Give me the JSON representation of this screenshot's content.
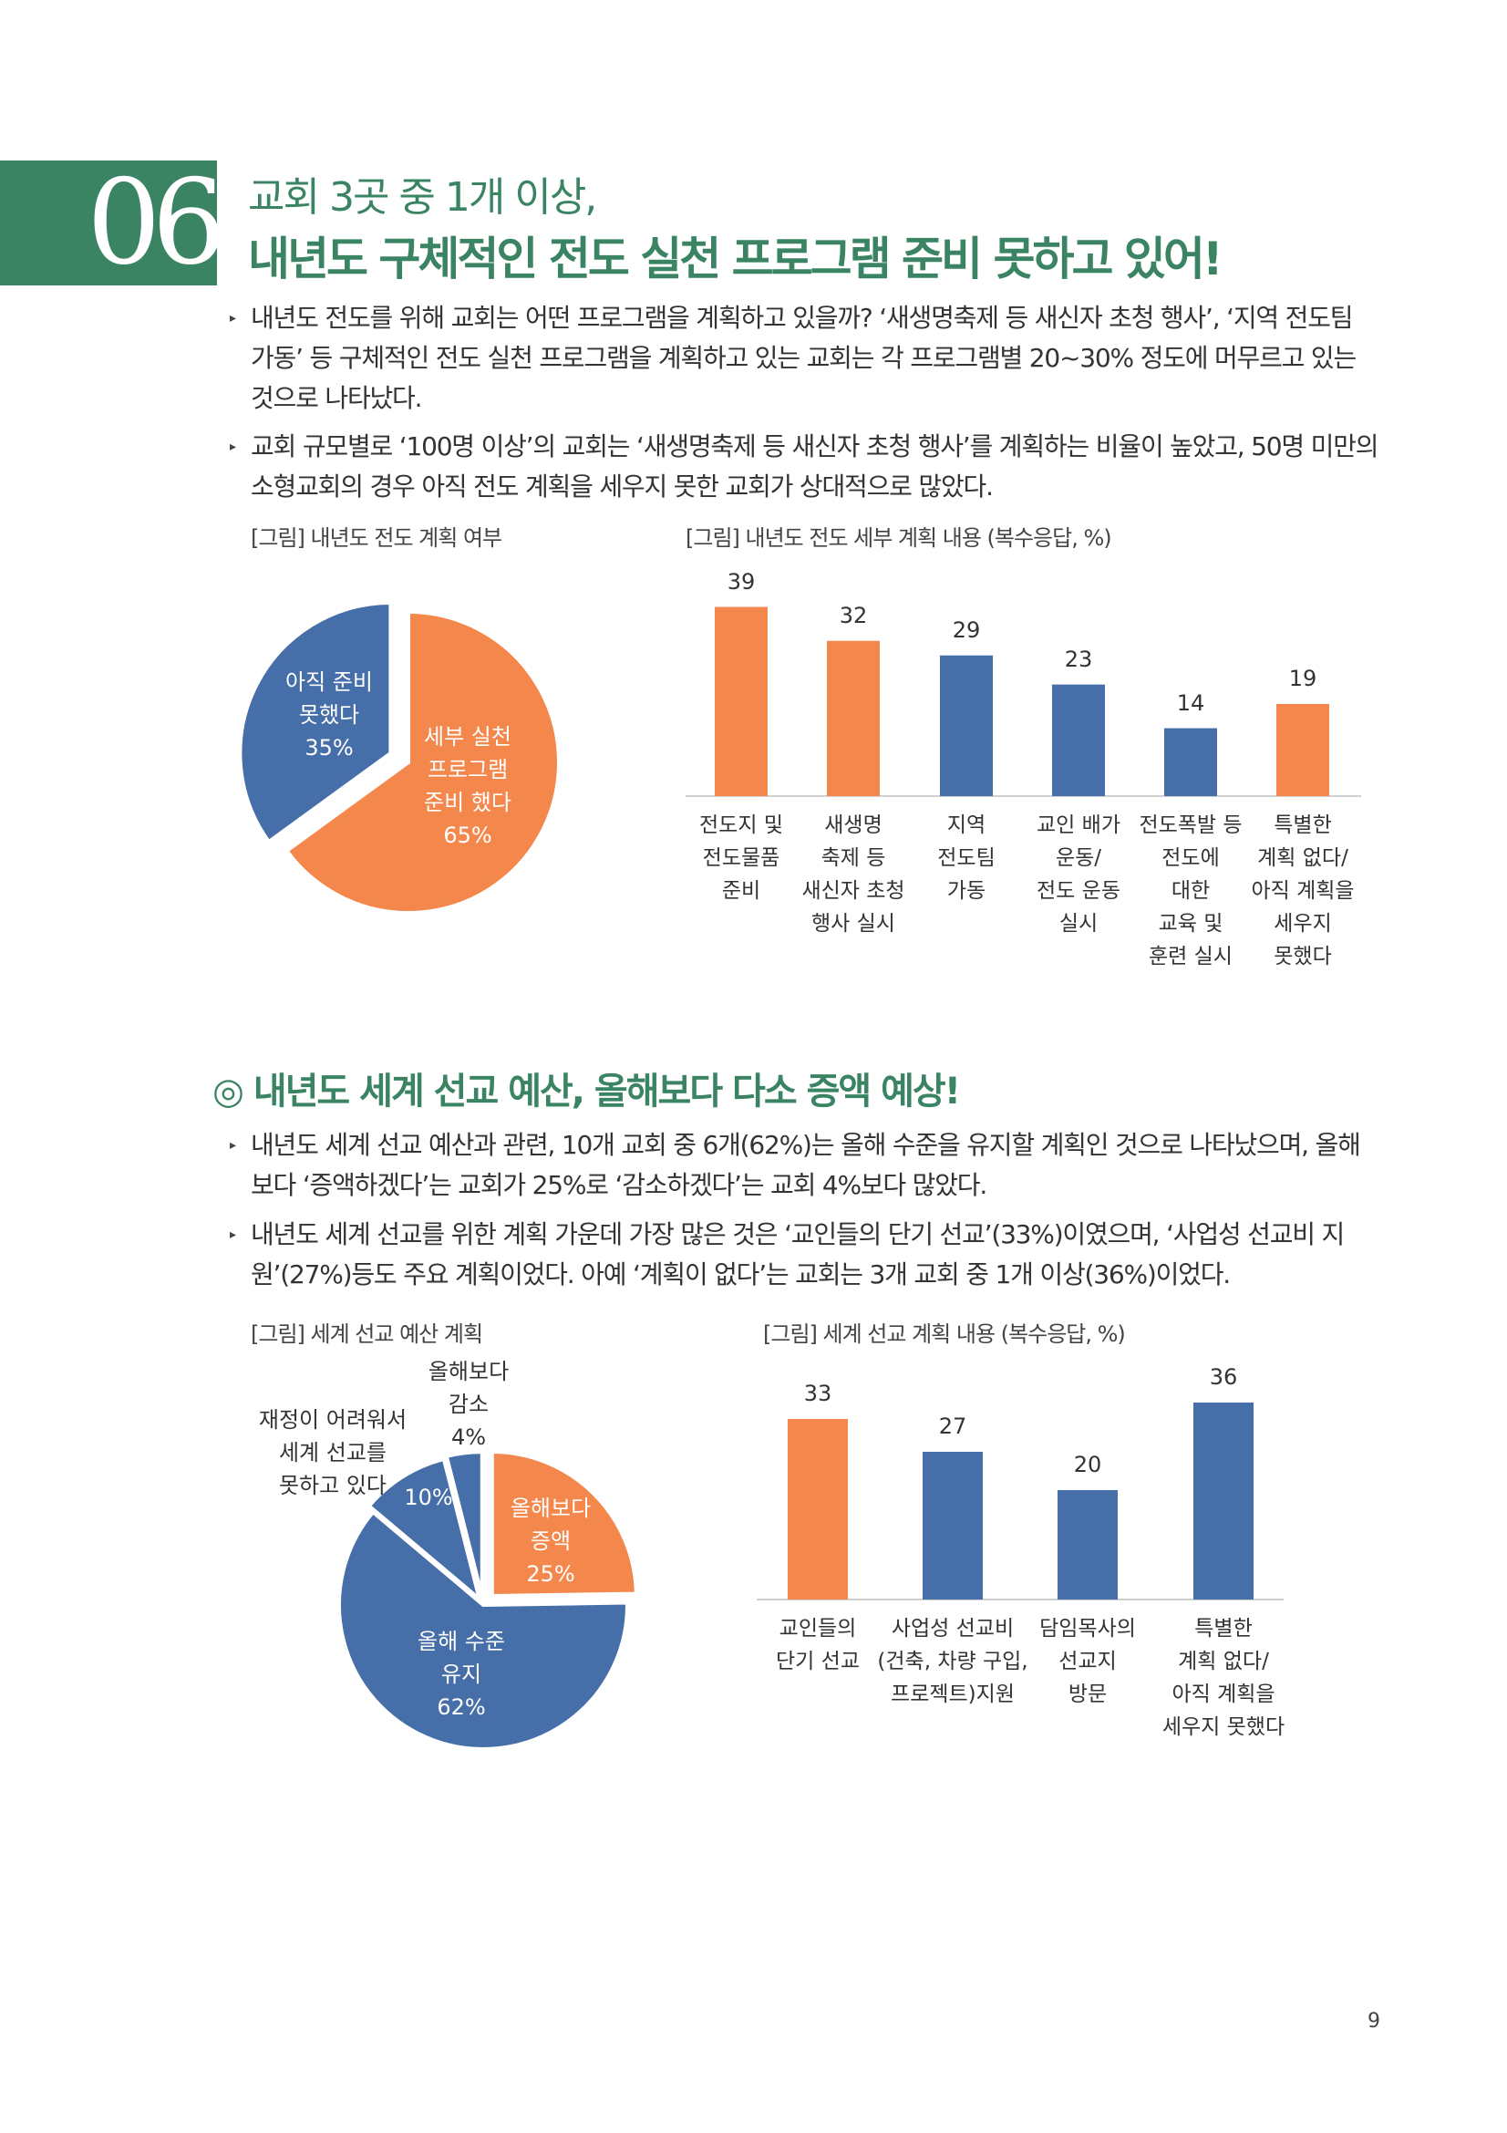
{
  "section_number": "06",
  "title_line1": "교회 3곳 중 1개 이상,",
  "title_line2": "내년도 구체적인 전도 실천 프로그램 준비 못하고 있어!",
  "bullets1": [
    "내년도 전도를 위해 교회는 어떤 프로그램을 계획하고 있을까? ‘새생명축제 등 새신자 초청 행사’, ‘지역 전도팀 가동’ 등 구체적인 전도 실천 프로그램을 계획하고 있는 교회는 각 프로그램별 20~30% 정도에 머무르고 있는 것으로 나타났다.",
    "교회 규모별로 ‘100명 이상’의 교회는 ‘새생명축제 등 새신자 초청 행사’를 계획하는 비율이 높았고, 50명 미만의 소형교회의 경우 아직 전도 계획을 세우지 못한 교회가 상대적으로 많았다."
  ],
  "section2_heading": "◎ 내년도 세계 선교 예산, 올해보다 다소 증액 예상!",
  "bullets2": [
    "내년도 세계 선교 예산과 관련, 10개 교회 중 6개(62%)는 올해 수준을 유지할 계획인 것으로 나타났으며, 올해보다 ‘증액하겠다’는 교회가 25%로 ‘감소하겠다’는 교회 4%보다 많았다.",
    "내년도 세계 선교를 위한 계획 가운데 가장 많은 것은 ‘교인들의 단기 선교’(33%)이였으며, ‘사업성 선교비 지원’(27%)등도 주요 계획이었다. 아예 ‘계획이 없다’는 교회는 3개 교회 중 1개 이상(36%)이었다."
  ],
  "page_number": "9",
  "colors": {
    "green": "#3b8463",
    "orange": "#f4874b",
    "blue": "#466ea8"
  },
  "chart_data": [
    {
      "type": "pie",
      "title": "[그림] 내년도 전도 계획 여부",
      "slices": [
        {
          "label": [
            "세부 실천",
            "프로그램",
            "준비 했다"
          ],
          "value": 65,
          "pct": "65%",
          "color": "#f4874b"
        },
        {
          "label": [
            "아직 준비",
            "못했다"
          ],
          "value": 35,
          "pct": "35%",
          "color": "#466ea8"
        }
      ]
    },
    {
      "type": "bar",
      "title": "[그림] 내년도 전도 세부 계획 내용 (복수응답, %)",
      "categories": [
        [
          "전도지 및",
          "전도물품",
          "준비"
        ],
        [
          "새생명",
          "축제 등",
          "새신자 초청",
          "행사 실시"
        ],
        [
          "지역",
          "전도팀",
          "가동"
        ],
        [
          "교인 배가",
          "운동/",
          "전도 운동",
          "실시"
        ],
        [
          "전도폭발 등",
          "전도에",
          "대한",
          "교육 및",
          "훈련 실시"
        ],
        [
          "특별한",
          "계획 없다/",
          "아직 계획을",
          "세우지",
          "못했다"
        ]
      ],
      "values": [
        39,
        32,
        29,
        23,
        14,
        19
      ],
      "colors": [
        "#f4874b",
        "#f4874b",
        "#466ea8",
        "#466ea8",
        "#466ea8",
        "#f4874b"
      ],
      "ylim": [
        0,
        40
      ]
    },
    {
      "type": "pie",
      "title": "[그림] 세계 선교 예산 계획",
      "slices": [
        {
          "label": [
            "올해보다",
            "증액"
          ],
          "value": 25,
          "pct": "25%",
          "color": "#f4874b"
        },
        {
          "label": [
            "올해 수준",
            "유지"
          ],
          "value": 62,
          "pct": "62%",
          "color": "#466ea8"
        },
        {
          "label": [
            "재정이 어려워서",
            "세계 선교를",
            "못하고 있다"
          ],
          "value": 10,
          "pct": "10%",
          "color": "#466ea8"
        },
        {
          "label": [
            "올해보다",
            "감소"
          ],
          "value": 4,
          "pct": "4%",
          "color": "#466ea8"
        }
      ]
    },
    {
      "type": "bar",
      "title": "[그림] 세계 선교 계획 내용 (복수응답, %)",
      "categories": [
        [
          "교인들의",
          "단기 선교"
        ],
        [
          "사업성 선교비",
          "(건축, 차량 구입,",
          "프로젝트)지원"
        ],
        [
          "담임목사의",
          "선교지",
          "방문"
        ],
        [
          "특별한",
          "계획 없다/",
          "아직 계획을",
          "세우지 못했다"
        ]
      ],
      "values": [
        33,
        27,
        20,
        36
      ],
      "colors": [
        "#f4874b",
        "#466ea8",
        "#466ea8",
        "#466ea8"
      ],
      "ylim": [
        0,
        40
      ]
    }
  ]
}
